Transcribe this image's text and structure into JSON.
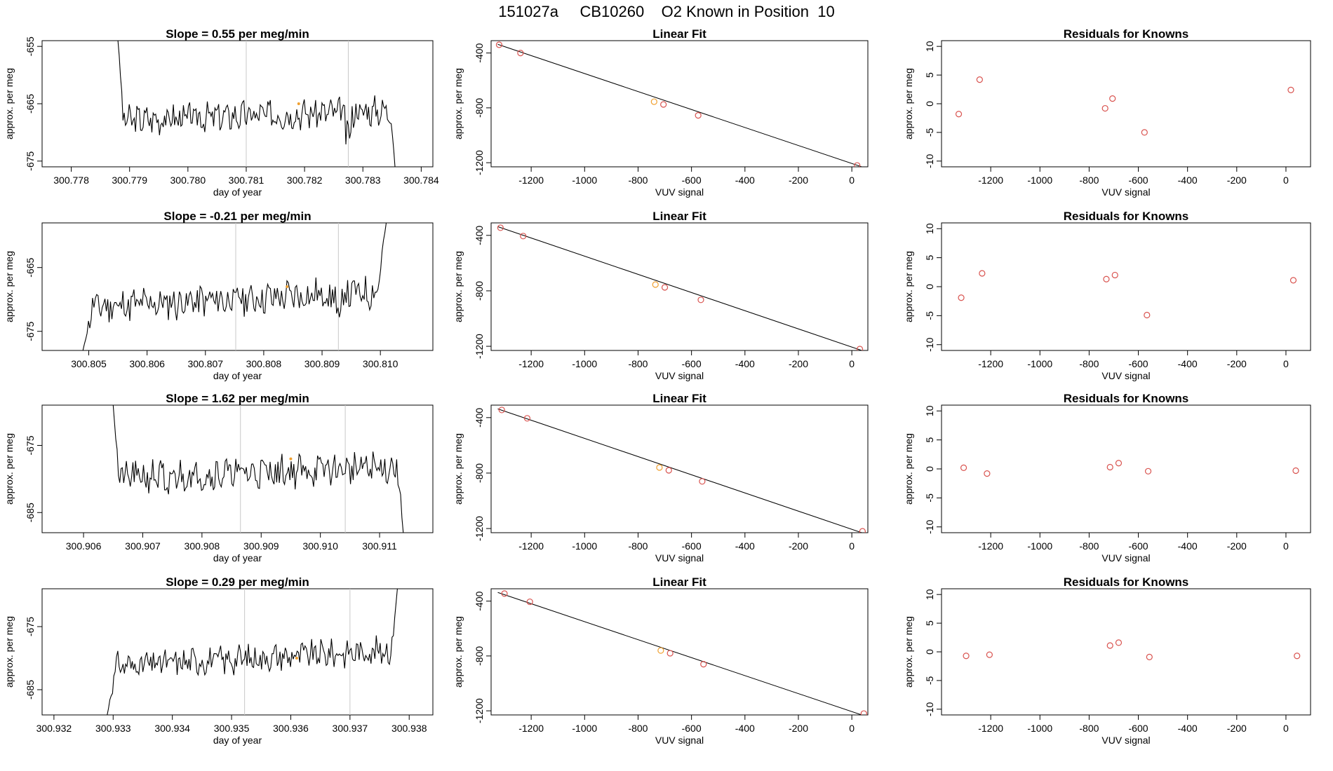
{
  "title": "151027a     CB10260    O2 Known in Position  10",
  "colors": {
    "trace": "#000000",
    "point": "#d9534f",
    "highlight": "#f0a030",
    "gridline": "#c8c8c8"
  },
  "chart_data": [
    {
      "type": "line",
      "row": 0,
      "col": 0,
      "title": "Slope =  0.55  per meg/min",
      "xlabel": "day of year",
      "ylabel": "approx. per meg",
      "xlim": [
        300.7775,
        300.7842
      ],
      "ylim": [
        -676,
        -654
      ],
      "xticks": [
        "300.778",
        "300.779",
        "300.780",
        "300.781",
        "300.782",
        "300.783",
        "300.784"
      ],
      "yticks": [
        "-655",
        "-665",
        "-675"
      ],
      "vlines": [
        300.781,
        300.78275
      ],
      "trace": {
        "x_start": 300.7788,
        "x_end": 300.78355,
        "level": -667,
        "noise": 2.2,
        "seed": 3,
        "trend": 1.8,
        "start_y": -654,
        "end_y": -676,
        "head": 0.02,
        "tail": 0.015,
        "dip_at": 300.78275,
        "dip_depth": -4
      },
      "highlight_point": {
        "x": 300.7819,
        "y": -665
      }
    },
    {
      "type": "scatter",
      "row": 0,
      "col": 1,
      "title": "Linear Fit",
      "xlabel": "VUV signal",
      "ylabel": "approx. per meg",
      "xlim": [
        -1350,
        60
      ],
      "ylim": [
        -1230,
        -310
      ],
      "xticks": [
        "-1200",
        "-1000",
        "-800",
        "-600",
        "-400",
        "-200",
        "0"
      ],
      "yticks": [
        "-400",
        "-800",
        "-1200"
      ],
      "x": [
        -1320,
        -1240,
        -740,
        -705,
        -575,
        20
      ],
      "y": [
        -340,
        -400,
        -755,
        -775,
        -855,
        -1220
      ],
      "highlight_index": 2,
      "fit_line": {
        "x": [
          -1325,
          60
        ],
        "y": [
          -337,
          -1245
        ]
      }
    },
    {
      "type": "scatter",
      "row": 0,
      "col": 2,
      "title": "Residuals for Knowns",
      "xlabel": "VUV signal",
      "ylabel": "approx. per meg",
      "xlim": [
        -1400,
        100
      ],
      "ylim": [
        -11,
        11
      ],
      "xticks": [
        "-1200",
        "-1000",
        "-800",
        "-600",
        "-400",
        "-200",
        "0"
      ],
      "yticks": [
        "10",
        "5",
        "0",
        "-5",
        "-10"
      ],
      "x": [
        -1330,
        -1245,
        -735,
        -705,
        -575,
        20
      ],
      "y": [
        -1.8,
        4.2,
        -0.8,
        0.9,
        -5.0,
        2.4
      ]
    },
    {
      "type": "line",
      "row": 1,
      "col": 0,
      "title": "Slope =  -0.21  per meg/min",
      "xlabel": "day of year",
      "ylabel": "approx. per meg",
      "xlim": [
        300.8042,
        300.8109
      ],
      "ylim": [
        -678,
        -658
      ],
      "xticks": [
        "300.805",
        "300.806",
        "300.807",
        "300.808",
        "300.809",
        "300.810"
      ],
      "yticks": [
        "-665",
        "-675"
      ],
      "vlines": [
        300.80752,
        300.80928
      ],
      "trace": {
        "x_start": 300.8049,
        "x_end": 300.8101,
        "level": -670,
        "noise": 2.3,
        "seed": 11,
        "trend": 2.5,
        "start_y": -678,
        "end_y": -658,
        "head": 0.03,
        "tail": 0.03,
        "dip_at": 300.80928,
        "dip_depth": -4
      },
      "highlight_point": {
        "x": 300.8084,
        "y": -668
      }
    },
    {
      "type": "scatter",
      "row": 1,
      "col": 1,
      "title": "Linear Fit",
      "xlabel": "VUV signal",
      "ylabel": "approx. per meg",
      "xlim": [
        -1350,
        60
      ],
      "ylim": [
        -1230,
        -310
      ],
      "xticks": [
        "-1200",
        "-1000",
        "-800",
        "-600",
        "-400",
        "-200",
        "0"
      ],
      "yticks": [
        "-400",
        "-800",
        "-1200"
      ],
      "x": [
        -1315,
        -1230,
        -735,
        -700,
        -565,
        30
      ],
      "y": [
        -345,
        -405,
        -755,
        -775,
        -865,
        -1220
      ],
      "highlight_index": 2,
      "fit_line": {
        "x": [
          -1325,
          60
        ],
        "y": [
          -337,
          -1245
        ]
      }
    },
    {
      "type": "scatter",
      "row": 1,
      "col": 2,
      "title": "Residuals for Knowns",
      "xlabel": "VUV signal",
      "ylabel": "approx. per meg",
      "xlim": [
        -1400,
        100
      ],
      "ylim": [
        -11,
        11
      ],
      "xticks": [
        "-1200",
        "-1000",
        "-800",
        "-600",
        "-400",
        "-200",
        "0"
      ],
      "yticks": [
        "10",
        "5",
        "0",
        "-5",
        "-10"
      ],
      "x": [
        -1320,
        -1235,
        -730,
        -695,
        -565,
        30
      ],
      "y": [
        -1.9,
        2.3,
        1.3,
        2.0,
        -4.9,
        1.1
      ]
    },
    {
      "type": "line",
      "row": 2,
      "col": 0,
      "title": "Slope =  1.62  per meg/min",
      "xlabel": "day of year",
      "ylabel": "approx. per meg",
      "xlim": [
        300.9053,
        300.9119
      ],
      "ylim": [
        -688,
        -669
      ],
      "xticks": [
        "300.906",
        "300.907",
        "300.908",
        "300.909",
        "300.910",
        "300.911"
      ],
      "yticks": [
        "-675",
        "-685"
      ],
      "vlines": [
        300.90865,
        300.91042
      ],
      "trace": {
        "x_start": 300.9065,
        "x_end": 300.9114,
        "level": -679,
        "noise": 2.1,
        "seed": 21,
        "trend": 1.6,
        "start_y": -669,
        "end_y": -688,
        "head": 0.02,
        "tail": 0.02,
        "dip_at": 300.9074,
        "dip_depth": -3
      },
      "highlight_point": {
        "x": 300.9095,
        "y": -677
      }
    },
    {
      "type": "scatter",
      "row": 2,
      "col": 1,
      "title": "Linear Fit",
      "xlabel": "VUV signal",
      "ylabel": "approx. per meg",
      "xlim": [
        -1350,
        60
      ],
      "ylim": [
        -1230,
        -310
      ],
      "xticks": [
        "-1200",
        "-1000",
        "-800",
        "-600",
        "-400",
        "-200",
        "0"
      ],
      "yticks": [
        "-400",
        "-800",
        "-1200"
      ],
      "x": [
        -1310,
        -1215,
        -720,
        -685,
        -560,
        40
      ],
      "y": [
        -345,
        -405,
        -760,
        -780,
        -860,
        -1220
      ],
      "highlight_index": 2,
      "fit_line": {
        "x": [
          -1325,
          60
        ],
        "y": [
          -337,
          -1245
        ]
      }
    },
    {
      "type": "scatter",
      "row": 2,
      "col": 2,
      "title": "Residuals for Knowns",
      "xlabel": "VUV signal",
      "ylabel": "approx. per meg",
      "xlim": [
        -1400,
        100
      ],
      "ylim": [
        -11,
        11
      ],
      "xticks": [
        "-1200",
        "-1000",
        "-800",
        "-600",
        "-400",
        "-200",
        "0"
      ],
      "yticks": [
        "10",
        "5",
        "0",
        "-5",
        "-10"
      ],
      "x": [
        -1310,
        -1215,
        -715,
        -680,
        -560,
        40
      ],
      "y": [
        0.2,
        -0.8,
        0.3,
        1.0,
        -0.4,
        -0.3
      ]
    },
    {
      "type": "line",
      "row": 3,
      "col": 0,
      "title": "Slope =  0.29  per meg/min",
      "xlabel": "day of year",
      "ylabel": "approx. per meg",
      "xlim": [
        300.9318,
        300.9384
      ],
      "ylim": [
        -689,
        -669
      ],
      "xticks": [
        "300.932",
        "300.933",
        "300.934",
        "300.935",
        "300.936",
        "300.937",
        "300.938"
      ],
      "yticks": [
        "-675",
        "-685"
      ],
      "vlines": [
        300.93522,
        300.937
      ],
      "trace": {
        "x_start": 300.9329,
        "x_end": 300.9378,
        "level": -680,
        "noise": 1.9,
        "seed": 31,
        "trend": 2.6,
        "start_y": -689,
        "end_y": -669,
        "head": 0.03,
        "tail": 0.02,
        "dip_at": 0,
        "dip_depth": 0
      },
      "highlight_point": {
        "x": 300.9361,
        "y": -680
      }
    },
    {
      "type": "scatter",
      "row": 3,
      "col": 1,
      "title": "Linear Fit",
      "xlabel": "VUV signal",
      "ylabel": "approx. per meg",
      "xlim": [
        -1350,
        60
      ],
      "ylim": [
        -1230,
        -310
      ],
      "xticks": [
        "-1200",
        "-1000",
        "-800",
        "-600",
        "-400",
        "-200",
        "0"
      ],
      "yticks": [
        "-400",
        "-800",
        "-1200"
      ],
      "x": [
        -1300,
        -1205,
        -715,
        -680,
        -555,
        45
      ],
      "y": [
        -345,
        -405,
        -760,
        -780,
        -860,
        -1220
      ],
      "highlight_index": 2,
      "fit_line": {
        "x": [
          -1325,
          60
        ],
        "y": [
          -337,
          -1245
        ]
      }
    },
    {
      "type": "scatter",
      "row": 3,
      "col": 2,
      "title": "Residuals for Knowns",
      "xlabel": "VUV signal",
      "ylabel": "approx. per meg",
      "xlim": [
        -1400,
        100
      ],
      "ylim": [
        -11,
        11
      ],
      "xticks": [
        "-1200",
        "-1000",
        "-800",
        "-600",
        "-400",
        "-200",
        "0"
      ],
      "yticks": [
        "10",
        "5",
        "0",
        "-5",
        "-10"
      ],
      "x": [
        -1300,
        -1205,
        -715,
        -680,
        -555,
        45
      ],
      "y": [
        -0.7,
        -0.5,
        1.1,
        1.6,
        -0.9,
        -0.7
      ]
    }
  ]
}
